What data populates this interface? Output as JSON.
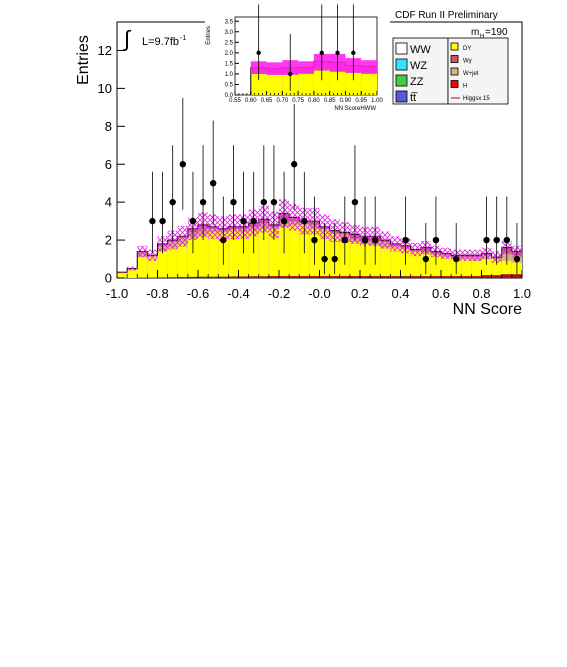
{
  "header": {
    "experiment": "CDF Run II Preliminary",
    "mass_label": "m",
    "mass_sub": "H",
    "mass_value": "=190",
    "lumi_prefix": "L=9.7fb",
    "lumi_exp": "-1"
  },
  "legend": {
    "left": [
      {
        "label": "WW",
        "color": "#ffffff"
      },
      {
        "label": "WZ",
        "color": "#33e5ff"
      },
      {
        "label": "ZZ",
        "color": "#44cc44"
      },
      {
        "label": "tt̅",
        "color": "#5555dd"
      }
    ],
    "right": [
      {
        "label": "DY",
        "color": "#ffff00"
      },
      {
        "label": "Wγ",
        "color": "#cc5566"
      },
      {
        "label": "W+jet",
        "color": "#d9b380"
      },
      {
        "label": "H",
        "color": "#ff0000"
      },
      {
        "label": "Higgsx 15",
        "color": "#cc0000",
        "line": true
      }
    ]
  },
  "chart_data": [
    {
      "type": "bar",
      "name": "main",
      "xlabel": "NN Score",
      "ylabel": "Entries",
      "xlim": [
        -1.0,
        1.0
      ],
      "ylim": [
        0,
        13.5
      ],
      "xticks": [
        "-1.0",
        "-0.8",
        "-0.6",
        "-0.4",
        "-0.2",
        "-0.0",
        "0.2",
        "0.4",
        "0.6",
        "0.8",
        "1.0"
      ],
      "yticks": [
        "0",
        "2",
        "4",
        "6",
        "8",
        "10",
        "12"
      ],
      "bin_width": 0.05,
      "bin_edges_start": -1.0,
      "dy": [
        0.3,
        0.4,
        1.1,
        1.1,
        1.4,
        1.6,
        1.8,
        2.1,
        2.3,
        2.4,
        2.4,
        2.5,
        2.4,
        2.5,
        2.6,
        2.6,
        2.7,
        2.8,
        2.8,
        2.6,
        2.5,
        2.3,
        2.1,
        1.9,
        1.8,
        1.7,
        1.6,
        1.6,
        1.5,
        1.4,
        1.3,
        1.2,
        1.1,
        1.0,
        1.0,
        0.9,
        1.0,
        1.0,
        0.9,
        0.8
      ],
      "total": [
        0.3,
        0.5,
        1.4,
        1.2,
        1.8,
        2.0,
        2.2,
        2.6,
        2.8,
        2.7,
        2.6,
        2.7,
        2.7,
        2.9,
        3.1,
        2.8,
        3.4,
        3.2,
        3.0,
        3.0,
        2.7,
        2.5,
        2.4,
        2.3,
        2.2,
        2.2,
        2.0,
        1.8,
        1.7,
        1.5,
        1.6,
        1.4,
        1.3,
        1.2,
        1.2,
        1.2,
        1.3,
        1.1,
        1.6,
        1.4
      ],
      "total_dy": [
        0.3,
        0.5,
        1.3,
        1.2,
        1.7,
        1.9,
        2.1,
        2.4,
        2.6,
        2.6,
        2.5,
        2.6,
        2.6,
        2.7,
        2.9,
        2.7,
        3.0,
        3.0,
        2.9,
        2.8,
        2.6,
        2.4,
        2.3,
        2.1,
        2.0,
        2.0,
        1.9,
        1.7,
        1.6,
        1.4,
        1.4,
        1.3,
        1.2,
        1.1,
        1.1,
        1.1,
        1.2,
        1.1,
        1.3,
        1.2
      ],
      "uncertainty": [
        0.05,
        0.1,
        0.3,
        0.3,
        0.4,
        0.5,
        0.55,
        0.6,
        0.65,
        0.65,
        0.65,
        0.65,
        0.65,
        0.7,
        0.7,
        0.7,
        0.75,
        0.7,
        0.7,
        0.7,
        0.65,
        0.6,
        0.55,
        0.5,
        0.5,
        0.5,
        0.45,
        0.4,
        0.4,
        0.35,
        0.35,
        0.3,
        0.3,
        0.3,
        0.3,
        0.3,
        0.3,
        0.3,
        0.35,
        0.3
      ],
      "higgs_x15": [
        0.0,
        0.0,
        0.02,
        0.02,
        0.03,
        0.04,
        0.05,
        0.06,
        0.07,
        0.07,
        0.07,
        0.08,
        0.08,
        0.09,
        0.09,
        0.1,
        0.1,
        0.1,
        0.1,
        0.1,
        0.1,
        0.1,
        0.1,
        0.1,
        0.1,
        0.1,
        0.1,
        0.1,
        0.1,
        0.1,
        0.1,
        0.1,
        0.1,
        0.1,
        0.1,
        0.1,
        0.15,
        0.15,
        0.2,
        0.2
      ],
      "data_points": [
        {
          "x": -0.825,
          "y": 3,
          "err": [
            1.7,
            2.6
          ]
        },
        {
          "x": -0.775,
          "y": 3,
          "err": [
            1.7,
            2.6
          ]
        },
        {
          "x": -0.725,
          "y": 4,
          "err": [
            2.0,
            3.0
          ]
        },
        {
          "x": -0.675,
          "y": 6,
          "err": [
            2.4,
            3.5
          ]
        },
        {
          "x": -0.625,
          "y": 3,
          "err": [
            1.7,
            2.6
          ]
        },
        {
          "x": -0.575,
          "y": 4,
          "err": [
            2.0,
            3.0
          ]
        },
        {
          "x": -0.525,
          "y": 5,
          "err": [
            2.2,
            3.3
          ]
        },
        {
          "x": -0.475,
          "y": 2,
          "err": [
            1.3,
            2.3
          ]
        },
        {
          "x": -0.425,
          "y": 4,
          "err": [
            2.0,
            3.0
          ]
        },
        {
          "x": -0.375,
          "y": 3,
          "err": [
            1.7,
            2.6
          ]
        },
        {
          "x": -0.325,
          "y": 3,
          "err": [
            1.7,
            2.6
          ]
        },
        {
          "x": -0.275,
          "y": 4,
          "err": [
            2.0,
            3.0
          ]
        },
        {
          "x": -0.225,
          "y": 4,
          "err": [
            2.0,
            3.0
          ]
        },
        {
          "x": -0.175,
          "y": 3,
          "err": [
            1.7,
            2.6
          ]
        },
        {
          "x": -0.125,
          "y": 6,
          "err": [
            2.4,
            3.5
          ]
        },
        {
          "x": -0.075,
          "y": 3,
          "err": [
            1.7,
            2.6
          ]
        },
        {
          "x": -0.025,
          "y": 2,
          "err": [
            1.3,
            2.3
          ]
        },
        {
          "x": 0.025,
          "y": 1,
          "err": [
            0.8,
            1.9
          ]
        },
        {
          "x": 0.075,
          "y": 1,
          "err": [
            0.8,
            1.9
          ]
        },
        {
          "x": 0.125,
          "y": 2,
          "err": [
            1.3,
            2.3
          ]
        },
        {
          "x": 0.175,
          "y": 4,
          "err": [
            2.0,
            3.0
          ]
        },
        {
          "x": 0.225,
          "y": 2,
          "err": [
            1.3,
            2.3
          ]
        },
        {
          "x": 0.275,
          "y": 2,
          "err": [
            1.3,
            2.3
          ]
        },
        {
          "x": 0.425,
          "y": 2,
          "err": [
            1.3,
            2.3
          ]
        },
        {
          "x": 0.525,
          "y": 1,
          "err": [
            0.8,
            1.9
          ]
        },
        {
          "x": 0.575,
          "y": 2,
          "err": [
            1.3,
            2.3
          ]
        },
        {
          "x": 0.675,
          "y": 1,
          "err": [
            0.8,
            1.9
          ]
        },
        {
          "x": 0.825,
          "y": 2,
          "err": [
            1.3,
            2.3
          ]
        },
        {
          "x": 0.875,
          "y": 2,
          "err": [
            1.3,
            2.3
          ]
        },
        {
          "x": 0.925,
          "y": 2,
          "err": [
            1.3,
            2.3
          ]
        },
        {
          "x": 0.975,
          "y": 1,
          "err": [
            0.8,
            1.9
          ]
        }
      ]
    },
    {
      "type": "bar",
      "name": "inset",
      "xlabel": "NN ScoreHWW",
      "ylabel": "Entries",
      "xlim": [
        0.55,
        1.0
      ],
      "ylim": [
        0,
        3.7
      ],
      "xticks": [
        "0.55",
        "0.60",
        "0.65",
        "0.70",
        "0.75",
        "0.80",
        "0.85",
        "0.90",
        "0.95",
        "1.00"
      ],
      "yticks": [
        "0.0",
        "0.5",
        "1.0",
        "1.5",
        "2.0",
        "2.5",
        "3.0",
        "3.5"
      ],
      "bin_edges": [
        0.6,
        0.65,
        0.7,
        0.75,
        0.8,
        0.85,
        0.9,
        0.95,
        1.0
      ],
      "dy": [
        1.0,
        1.0,
        1.0,
        1.05,
        1.15,
        1.1,
        1.05,
        1.0
      ],
      "total": [
        1.3,
        1.25,
        1.3,
        1.3,
        1.6,
        1.55,
        1.4,
        1.35
      ],
      "uncertainty": [
        0.3,
        0.3,
        0.35,
        0.3,
        0.35,
        0.4,
        0.35,
        0.3
      ],
      "data_points": [
        {
          "x": 0.625,
          "y": 2,
          "err": [
            1.3,
            2.3
          ]
        },
        {
          "x": 0.725,
          "y": 1,
          "err": [
            0.8,
            1.9
          ]
        },
        {
          "x": 0.825,
          "y": 2,
          "err": [
            1.3,
            2.3
          ]
        },
        {
          "x": 0.875,
          "y": 2,
          "err": [
            1.3,
            2.3
          ]
        },
        {
          "x": 0.925,
          "y": 2,
          "err": [
            1.3,
            2.3
          ]
        }
      ]
    }
  ]
}
